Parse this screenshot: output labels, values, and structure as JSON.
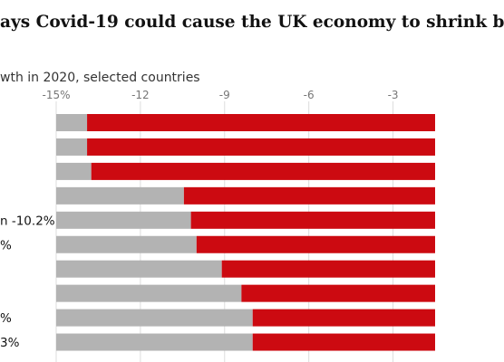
{
  "title": "ays Covid-19 could cause the UK economy to shrink b",
  "subtitle": "wth in 2020, selected countries",
  "chart_data": {
    "type": "bar",
    "orientation": "horizontal",
    "stacked": true,
    "title": "ays Covid-19 could cause the UK economy to shrink b",
    "subtitle": "wth in 2020, selected countries",
    "x_axis_position": "top",
    "ticks": [
      "-15%",
      "-12",
      "-9",
      "-6",
      "-3"
    ],
    "tick_values": [
      -15,
      -12,
      -9,
      -6,
      -3
    ],
    "xlim": [
      -15,
      -1.5
    ],
    "categories": [
      "",
      "",
      "",
      "",
      "n -10.2%",
      "%",
      "",
      "",
      "%",
      "3%"
    ],
    "series": [
      {
        "color": "#b3b3b3",
        "start": [
          -15,
          -15,
          -15,
          -15,
          -15,
          -15,
          -15,
          -15,
          -15,
          -15
        ],
        "end": [
          -13.9,
          -13.9,
          -13.75,
          -10.45,
          -10.2,
          -10.0,
          -9.1,
          -8.4,
          -8.0,
          -8.0
        ]
      },
      {
        "color": "#cc0a11",
        "start": [
          -13.9,
          -13.9,
          -13.75,
          -10.45,
          -10.2,
          -10.0,
          -9.1,
          -8.4,
          -8.0,
          -8.0
        ],
        "end": [
          -1.5,
          -1.5,
          -1.5,
          -1.5,
          -1.5,
          -1.5,
          -1.5,
          -1.5,
          -1.5,
          -1.5
        ]
      }
    ],
    "grid": true
  }
}
